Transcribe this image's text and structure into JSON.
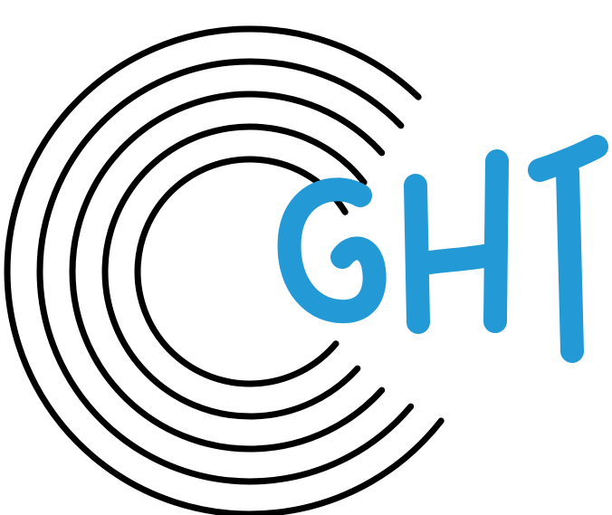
{
  "logo": {
    "text": "GHT",
    "letters": [
      "G",
      "H",
      "T"
    ],
    "ring_color": "#000000",
    "text_color": "#2399d6",
    "background": "#ffffff",
    "ring_count": 5
  }
}
